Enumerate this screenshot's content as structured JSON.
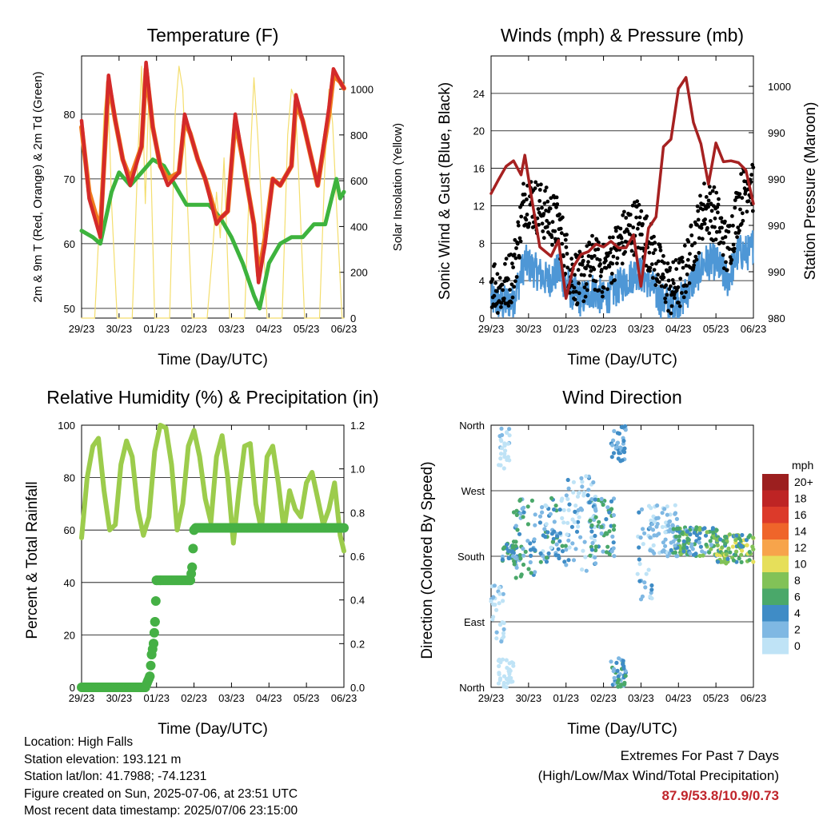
{
  "palette": {
    "red": "#d42a2a",
    "orange": "#f07c1e",
    "green": "#3db33d",
    "yellow": "#f4de6e",
    "blue": "#4e97d6",
    "black": "#000000",
    "maroon": "#a62121",
    "rh": "#9ccc4c",
    "precip": "#45b045"
  },
  "x_axis": {
    "ticks": [
      "29/23",
      "30/23",
      "01/23",
      "02/23",
      "03/23",
      "04/23",
      "05/23",
      "06/23"
    ],
    "label": "Time (Day/UTC)"
  },
  "chart_data": [
    {
      "type": "line",
      "title": "Temperature (F)",
      "xlabel": "Time (Day/UTC)",
      "ylabel": "2m & 9m T (Red, Orange) & 2m Td (Green)",
      "ylabel_right": "Solar Insolation (Yellow)",
      "ylim": [
        48.5,
        89
      ],
      "yticks": [
        "50",
        "60",
        "70",
        "80"
      ],
      "ylim_right": [
        0,
        1145
      ],
      "yticks_right": [
        "0",
        "200",
        "400",
        "600",
        "800",
        "1000"
      ],
      "x_unit": "days since 29/23 (0-7)",
      "series": [
        {
          "name": "2m T",
          "color": "#d42a2a",
          "x": [
            0,
            0.2,
            0.5,
            0.72,
            0.9,
            1.1,
            1.3,
            1.6,
            1.72,
            1.9,
            2.1,
            2.3,
            2.6,
            2.75,
            2.9,
            3.1,
            3.3,
            3.6,
            3.72,
            3.9,
            4.1,
            4.3,
            4.6,
            4.72,
            4.9,
            5.1,
            5.3,
            5.6,
            5.72,
            5.9,
            6.1,
            6.3,
            6.6,
            6.72,
            6.9,
            7
          ],
          "values": [
            79,
            67,
            61,
            86,
            79,
            73,
            69,
            75,
            88,
            78,
            72,
            69,
            71,
            80,
            77,
            73,
            70,
            63,
            64,
            65,
            80,
            73,
            63,
            54,
            60,
            70,
            69,
            72,
            83,
            79,
            74,
            69,
            81,
            87,
            85,
            84
          ]
        },
        {
          "name": "9m T",
          "color": "#f07c1e",
          "x": [
            0,
            0.2,
            0.5,
            0.72,
            0.9,
            1.1,
            1.3,
            1.6,
            1.72,
            1.9,
            2.1,
            2.3,
            2.6,
            2.75,
            2.9,
            3.1,
            3.3,
            3.6,
            3.72,
            3.9,
            4.1,
            4.3,
            4.6,
            4.72,
            4.9,
            5.1,
            5.3,
            5.6,
            5.72,
            5.9,
            6.1,
            6.3,
            6.6,
            6.72,
            6.9,
            7
          ],
          "values": [
            78,
            68,
            62,
            85,
            79,
            73,
            70,
            75,
            87,
            78,
            72,
            70,
            71,
            79,
            77,
            73,
            70,
            64,
            64,
            65,
            79,
            73,
            63,
            55,
            61,
            70,
            69,
            72,
            82,
            79,
            74,
            69,
            80,
            86,
            85,
            84
          ]
        },
        {
          "name": "2m Td",
          "color": "#3db33d",
          "x": [
            0,
            0.3,
            0.5,
            0.8,
            1,
            1.3,
            1.6,
            1.9,
            2.2,
            2.5,
            2.8,
            3.1,
            3.4,
            3.7,
            4,
            4.3,
            4.6,
            4.75,
            5,
            5.3,
            5.6,
            5.9,
            6.2,
            6.5,
            6.8,
            6.9,
            7
          ],
          "values": [
            62,
            61,
            60,
            68,
            71,
            69,
            71,
            73,
            72,
            69,
            66,
            66,
            66,
            64,
            61,
            57,
            52,
            50,
            57,
            60,
            61,
            61,
            63,
            63,
            70,
            67,
            68
          ]
        },
        {
          "name": "Solar Insolation",
          "color": "#f4de6e",
          "axis": "right",
          "x": [
            0,
            0.35,
            0.5,
            0.6,
            0.7,
            0.8,
            0.95,
            1.35,
            1.5,
            1.6,
            1.7,
            1.8,
            1.95,
            2.35,
            2.5,
            2.6,
            2.7,
            2.8,
            2.95,
            3.35,
            3.5,
            3.6,
            3.7,
            3.8,
            3.95,
            4.35,
            4.5,
            4.6,
            4.7,
            4.8,
            4.95,
            5.35,
            5.5,
            5.6,
            5.7,
            5.8,
            5.95,
            6.35,
            6.5,
            6.6,
            6.7,
            6.8,
            6.95,
            7
          ],
          "values": [
            0,
            0,
            500,
            900,
            1050,
            500,
            0,
            0,
            700,
            1100,
            500,
            1000,
            0,
            0,
            900,
            1100,
            1000,
            600,
            0,
            0,
            300,
            550,
            350,
            700,
            0,
            0,
            700,
            1050,
            800,
            500,
            0,
            0,
            800,
            1000,
            950,
            600,
            0,
            0,
            700,
            1000,
            850,
            500,
            0,
            0
          ]
        }
      ]
    },
    {
      "type": "scatter",
      "title": "Winds (mph) & Pressure (mb)",
      "xlabel": "Time (Day/UTC)",
      "ylabel": "Sonic Wind & Gust (Blue, Black)",
      "ylabel_right": "Station Pressure (Maroon)",
      "ylim": [
        0,
        28
      ],
      "yticks": [
        "0",
        "4",
        "8",
        "12",
        "16",
        "20",
        "24"
      ],
      "yticks_right": [
        "980",
        "990",
        "990",
        "990",
        "990",
        "1000",
        "1000"
      ],
      "x_unit": "days since 29/23 (0-7)",
      "series": [
        {
          "name": "Wind",
          "color": "#4e97d6",
          "x": [
            0,
            0.3,
            0.6,
            0.9,
            1.2,
            1.5,
            1.8,
            2.1,
            2.4,
            2.7,
            3,
            3.3,
            3.6,
            3.9,
            4.2,
            4.5,
            4.8,
            5.1,
            5.4,
            5.7,
            6,
            6.3,
            6.6,
            6.9,
            7
          ],
          "values": [
            2,
            1.5,
            2,
            6,
            5,
            4,
            5,
            3,
            2,
            3,
            2,
            3,
            4,
            5,
            4,
            2,
            1.5,
            2,
            4,
            6,
            6,
            4,
            7,
            7,
            8
          ]
        },
        {
          "name": "Gust",
          "color": "#000000",
          "x": [
            0,
            0.3,
            0.6,
            0.9,
            1.2,
            1.5,
            1.8,
            2.1,
            2.4,
            2.7,
            3,
            3.3,
            3.6,
            3.9,
            4.2,
            4.5,
            4.8,
            5.1,
            5.4,
            5.7,
            6,
            6.3,
            6.6,
            6.9,
            7
          ],
          "values": [
            4,
            3,
            5,
            13,
            12,
            11,
            10,
            5,
            4,
            6,
            5,
            7,
            9,
            10,
            8,
            5,
            3,
            4,
            8,
            12,
            11,
            7,
            12,
            15,
            14
          ]
        },
        {
          "name": "Station Pressure",
          "color": "#a62121",
          "x": [
            0,
            0.2,
            0.4,
            0.6,
            0.8,
            0.9,
            1.1,
            1.3,
            1.6,
            1.8,
            2.0,
            2.2,
            2.4,
            2.6,
            2.8,
            3.0,
            3.2,
            3.4,
            3.6,
            3.8,
            4.0,
            4.2,
            4.4,
            4.6,
            4.8,
            5.0,
            5.2,
            5.4,
            5.6,
            5.8,
            6.0,
            6.2,
            6.4,
            6.6,
            6.8,
            7
          ],
          "values": [
            13.3,
            14.8,
            16.2,
            16.8,
            15.3,
            17.4,
            12.4,
            7.6,
            6.6,
            8.3,
            2.1,
            5.5,
            6.8,
            7.1,
            7.9,
            7.6,
            8.2,
            7.5,
            7.5,
            8.9,
            3.4,
            9.6,
            10.8,
            18.3,
            19.1,
            24.5,
            25.7,
            20.9,
            18.6,
            14.3,
            18.7,
            16.7,
            16.8,
            16.6,
            15.8,
            12.2
          ]
        }
      ]
    },
    {
      "type": "line",
      "title": "Relative Humidity (%) & Precipitation (in)",
      "xlabel": "Time (Day/UTC)",
      "ylabel": "Percent & Total Rainfall",
      "ylim": [
        0,
        100
      ],
      "yticks": [
        "0",
        "20",
        "40",
        "60",
        "80",
        "100"
      ],
      "ylim_right": [
        0,
        1.2
      ],
      "yticks_right": [
        "0.0",
        "0.2",
        "0.4",
        "0.6",
        "0.8",
        "1.0",
        "1.2"
      ],
      "x_unit": "days since 29/23 (0-7)",
      "series": [
        {
          "name": "Relative Humidity",
          "color": "#9ccc4c",
          "x": [
            0,
            0.15,
            0.3,
            0.45,
            0.6,
            0.75,
            0.9,
            1.05,
            1.2,
            1.35,
            1.5,
            1.65,
            1.8,
            1.95,
            2.1,
            2.25,
            2.4,
            2.55,
            2.7,
            2.85,
            3.0,
            3.15,
            3.3,
            3.45,
            3.6,
            3.75,
            3.9,
            4.05,
            4.2,
            4.35,
            4.5,
            4.65,
            4.8,
            4.95,
            5.1,
            5.25,
            5.4,
            5.55,
            5.7,
            5.85,
            6.0,
            6.15,
            6.3,
            6.45,
            6.6,
            6.75,
            6.9,
            7
          ],
          "values": [
            57,
            80,
            92,
            95,
            75,
            60,
            62,
            85,
            94,
            88,
            68,
            58,
            65,
            90,
            100,
            99,
            85,
            60,
            70,
            92,
            98,
            88,
            72,
            63,
            88,
            96,
            80,
            55,
            75,
            92,
            93,
            70,
            60,
            88,
            92,
            78,
            60,
            75,
            68,
            65,
            78,
            82,
            72,
            62,
            68,
            78,
            58,
            52
          ]
        },
        {
          "name": "Total Precipitation",
          "color": "#45b045",
          "axis": "right",
          "x": [
            0,
            1.7,
            1.82,
            1.87,
            1.92,
            1.96,
            2.0,
            2.1,
            2.9,
            2.95,
            3.0,
            3.05,
            7
          ],
          "values": [
            0,
            0,
            0.05,
            0.15,
            0.2,
            0.3,
            0.49,
            0.49,
            0.49,
            0.55,
            0.72,
            0.73,
            0.73
          ]
        }
      ]
    },
    {
      "type": "scatter",
      "title": "Wind Direction",
      "xlabel": "Time (Day/UTC)",
      "ylabel": "Direction (Colored By Speed)",
      "yticks": [
        "North",
        "East",
        "South",
        "West",
        "North"
      ],
      "ylim": [
        0,
        360
      ],
      "x_unit": "days since 29/23 (0-7)",
      "colorbar_unit": "mph",
      "colorbar": [
        {
          "label": "20+",
          "color": "#9c1f1f"
        },
        {
          "label": "18",
          "color": "#be2424"
        },
        {
          "label": "16",
          "color": "#dc3a2a"
        },
        {
          "label": "14",
          "color": "#ef652a"
        },
        {
          "label": "12",
          "color": "#f7a44b"
        },
        {
          "label": "10",
          "color": "#e6df5a"
        },
        {
          "label": "8",
          "color": "#82c257"
        },
        {
          "label": "6",
          "color": "#4aa86a"
        },
        {
          "label": "4",
          "color": "#3f8cc6"
        },
        {
          "label": "2",
          "color": "#7fb8e3"
        },
        {
          "label": "0",
          "color": "#bfe3f6"
        }
      ],
      "clusters": [
        {
          "t": [
            0.0,
            0.35
          ],
          "dir": [
            60,
            140
          ],
          "speed": [
            0,
            3
          ]
        },
        {
          "t": [
            0.3,
            0.7
          ],
          "dir": [
            170,
            200
          ],
          "speed": [
            3,
            9
          ]
        },
        {
          "t": [
            0.6,
            1.2
          ],
          "dir": [
            150,
            260
          ],
          "speed": [
            2,
            8
          ]
        },
        {
          "t": [
            0.2,
            0.6
          ],
          "dir": [
            0,
            40
          ],
          "speed": [
            0,
            2
          ]
        },
        {
          "t": [
            0.2,
            0.5
          ],
          "dir": [
            300,
            360
          ],
          "speed": [
            0,
            3
          ]
        },
        {
          "t": [
            1.3,
            2.0
          ],
          "dir": [
            170,
            260
          ],
          "speed": [
            1,
            7
          ]
        },
        {
          "t": [
            2.0,
            2.8
          ],
          "dir": [
            160,
            290
          ],
          "speed": [
            0,
            5
          ]
        },
        {
          "t": [
            2.6,
            3.3
          ],
          "dir": [
            180,
            260
          ],
          "speed": [
            2,
            8
          ]
        },
        {
          "t": [
            3.2,
            3.6
          ],
          "dir": [
            0,
            40
          ],
          "speed": [
            2,
            7
          ]
        },
        {
          "t": [
            3.2,
            3.6
          ],
          "dir": [
            310,
            360
          ],
          "speed": [
            2,
            6
          ]
        },
        {
          "t": [
            3.9,
            4.3
          ],
          "dir": [
            120,
            250
          ],
          "speed": [
            0,
            5
          ]
        },
        {
          "t": [
            4.3,
            5.0
          ],
          "dir": [
            180,
            250
          ],
          "speed": [
            1,
            4
          ]
        },
        {
          "t": [
            4.8,
            6.1
          ],
          "dir": [
            180,
            220
          ],
          "speed": [
            3,
            10
          ]
        },
        {
          "t": [
            6.0,
            7.0
          ],
          "dir": [
            170,
            210
          ],
          "speed": [
            5,
            11
          ]
        }
      ]
    }
  ],
  "info": {
    "location": "Location: High Falls",
    "elevation": "Station elevation: 193.121 m",
    "latlon": "Station lat/lon: 41.7988; -74.1231",
    "created": "Figure created on Sun, 2025-07-06, at 23:51 UTC",
    "recent": "Most recent data timestamp: 2025/07/06 23:15:00"
  },
  "extremes": {
    "title": "Extremes For Past 7 Days",
    "subtitle": "(High/Low/Max Wind/Total Precipitation)",
    "values": "87.9/53.8/10.9/0.73"
  }
}
